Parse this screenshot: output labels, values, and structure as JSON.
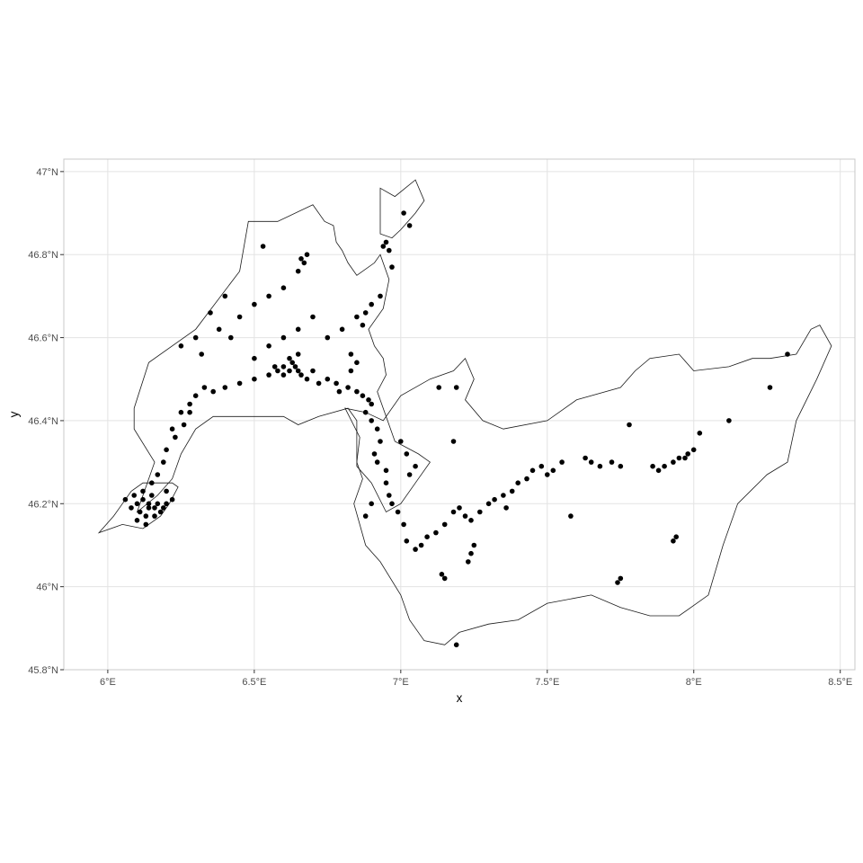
{
  "chart_data": {
    "type": "scatter",
    "xlabel": "x",
    "ylabel": "y",
    "xlim": [
      5.85,
      8.55
    ],
    "ylim": [
      45.8,
      47.03
    ],
    "x_ticks": [
      {
        "value": 6.0,
        "label": "6°E"
      },
      {
        "value": 6.5,
        "label": "6.5°E"
      },
      {
        "value": 7.0,
        "label": "7°E"
      },
      {
        "value": 7.5,
        "label": "7.5°E"
      },
      {
        "value": 8.0,
        "label": "8°E"
      },
      {
        "value": 8.5,
        "label": "8.5°E"
      }
    ],
    "y_ticks": [
      {
        "value": 45.8,
        "label": "45.8°N"
      },
      {
        "value": 46.0,
        "label": "46°N"
      },
      {
        "value": 46.2,
        "label": "46.2°N"
      },
      {
        "value": 46.4,
        "label": "46.4°N"
      },
      {
        "value": 46.6,
        "label": "46.6°N"
      },
      {
        "value": 46.8,
        "label": "46.8°N"
      },
      {
        "value": 47.0,
        "label": "47°N"
      }
    ],
    "grid": true,
    "legend": "none",
    "colors": {
      "panel_border": "#c8c8c8",
      "grid": "#e3e3e3",
      "outline": "#1a1a1a",
      "points": "#000000"
    },
    "outline_geneva": [
      [
        5.97,
        46.13
      ],
      [
        6.05,
        46.15
      ],
      [
        6.12,
        46.14
      ],
      [
        6.18,
        46.17
      ],
      [
        6.21,
        46.2
      ],
      [
        6.24,
        46.24
      ],
      [
        6.22,
        46.25
      ],
      [
        6.17,
        46.25
      ],
      [
        6.12,
        46.25
      ],
      [
        6.08,
        46.23
      ],
      [
        6.05,
        46.2
      ],
      [
        6.02,
        46.17
      ],
      [
        5.97,
        46.13
      ]
    ],
    "outline_vaud": [
      [
        6.1,
        46.18
      ],
      [
        6.16,
        46.3
      ],
      [
        6.09,
        46.38
      ],
      [
        6.09,
        46.43
      ],
      [
        6.14,
        46.54
      ],
      [
        6.3,
        46.62
      ],
      [
        6.45,
        46.76
      ],
      [
        6.48,
        46.88
      ],
      [
        6.58,
        46.88
      ],
      [
        6.7,
        46.92
      ],
      [
        6.74,
        46.88
      ],
      [
        6.77,
        46.87
      ],
      [
        6.78,
        46.83
      ],
      [
        6.8,
        46.81
      ],
      [
        6.82,
        46.78
      ],
      [
        6.85,
        46.75
      ],
      [
        6.91,
        46.78
      ],
      [
        6.93,
        46.8
      ],
      [
        6.96,
        46.74
      ],
      [
        6.94,
        46.67
      ],
      [
        6.89,
        46.62
      ],
      [
        6.91,
        46.58
      ],
      [
        6.94,
        46.55
      ],
      [
        6.95,
        46.51
      ],
      [
        6.92,
        46.47
      ],
      [
        6.95,
        46.41
      ],
      [
        6.98,
        46.35
      ],
      [
        7.06,
        46.32
      ],
      [
        7.1,
        46.3
      ],
      [
        7.05,
        46.25
      ],
      [
        7.0,
        46.2
      ],
      [
        6.95,
        46.18
      ],
      [
        6.9,
        46.25
      ],
      [
        6.85,
        46.29
      ],
      [
        6.85,
        46.4
      ],
      [
        6.82,
        46.43
      ],
      [
        6.72,
        46.41
      ],
      [
        6.65,
        46.39
      ],
      [
        6.6,
        46.41
      ],
      [
        6.48,
        46.41
      ],
      [
        6.36,
        46.41
      ],
      [
        6.3,
        46.38
      ],
      [
        6.25,
        46.32
      ],
      [
        6.22,
        46.26
      ],
      [
        6.17,
        46.22
      ],
      [
        6.1,
        46.18
      ]
    ],
    "outline_fribourg_north": [
      [
        6.93,
        46.96
      ],
      [
        6.98,
        46.94
      ],
      [
        7.05,
        46.98
      ],
      [
        7.08,
        46.93
      ],
      [
        7.05,
        46.9
      ],
      [
        7.0,
        46.86
      ],
      [
        6.97,
        46.84
      ],
      [
        6.93,
        46.85
      ],
      [
        6.93,
        46.9
      ],
      [
        6.93,
        46.96
      ]
    ],
    "outline_valais": [
      [
        6.81,
        46.43
      ],
      [
        6.86,
        46.36
      ],
      [
        6.85,
        46.3
      ],
      [
        6.87,
        46.26
      ],
      [
        6.84,
        46.2
      ],
      [
        6.86,
        46.15
      ],
      [
        6.88,
        46.1
      ],
      [
        6.93,
        46.06
      ],
      [
        7.0,
        45.98
      ],
      [
        7.03,
        45.92
      ],
      [
        7.08,
        45.87
      ],
      [
        7.15,
        45.86
      ],
      [
        7.2,
        45.89
      ],
      [
        7.3,
        45.91
      ],
      [
        7.4,
        45.92
      ],
      [
        7.5,
        45.96
      ],
      [
        7.65,
        45.98
      ],
      [
        7.75,
        45.95
      ],
      [
        7.85,
        45.93
      ],
      [
        7.95,
        45.93
      ],
      [
        8.05,
        45.98
      ],
      [
        8.1,
        46.1
      ],
      [
        8.15,
        46.2
      ],
      [
        8.25,
        46.27
      ],
      [
        8.32,
        46.3
      ],
      [
        8.35,
        46.4
      ],
      [
        8.42,
        46.5
      ],
      [
        8.47,
        46.58
      ],
      [
        8.43,
        46.63
      ],
      [
        8.4,
        46.62
      ],
      [
        8.35,
        46.56
      ],
      [
        8.26,
        46.55
      ],
      [
        8.2,
        46.55
      ],
      [
        8.12,
        46.53
      ],
      [
        8.0,
        46.52
      ],
      [
        7.95,
        46.56
      ],
      [
        7.85,
        46.55
      ],
      [
        7.8,
        46.52
      ],
      [
        7.75,
        46.48
      ],
      [
        7.6,
        46.45
      ],
      [
        7.5,
        46.4
      ],
      [
        7.35,
        46.38
      ],
      [
        7.28,
        46.4
      ],
      [
        7.22,
        46.45
      ],
      [
        7.25,
        46.5
      ],
      [
        7.22,
        46.55
      ],
      [
        7.18,
        46.52
      ],
      [
        7.1,
        46.5
      ],
      [
        7.0,
        46.46
      ],
      [
        6.94,
        46.4
      ],
      [
        6.88,
        46.42
      ],
      [
        6.81,
        46.43
      ]
    ],
    "points": [
      [
        6.1,
        46.2
      ],
      [
        6.12,
        46.21
      ],
      [
        6.14,
        46.2
      ],
      [
        6.16,
        46.19
      ],
      [
        6.11,
        46.18
      ],
      [
        6.13,
        46.17
      ],
      [
        6.15,
        46.22
      ],
      [
        6.17,
        46.2
      ],
      [
        6.19,
        46.19
      ],
      [
        6.09,
        46.22
      ],
      [
        6.12,
        46.23
      ],
      [
        6.14,
        46.19
      ],
      [
        6.16,
        46.17
      ],
      [
        6.18,
        46.18
      ],
      [
        6.2,
        46.2
      ],
      [
        6.08,
        46.19
      ],
      [
        6.1,
        46.16
      ],
      [
        6.13,
        46.15
      ],
      [
        6.06,
        46.21
      ],
      [
        6.2,
        46.23
      ],
      [
        6.22,
        46.21
      ],
      [
        6.15,
        46.25
      ],
      [
        6.17,
        46.27
      ],
      [
        6.19,
        46.3
      ],
      [
        6.2,
        46.33
      ],
      [
        6.22,
        46.38
      ],
      [
        6.25,
        46.42
      ],
      [
        6.28,
        46.44
      ],
      [
        6.3,
        46.46
      ],
      [
        6.33,
        46.48
      ],
      [
        6.36,
        46.47
      ],
      [
        6.4,
        46.48
      ],
      [
        6.45,
        46.49
      ],
      [
        6.5,
        46.5
      ],
      [
        6.55,
        46.51
      ],
      [
        6.58,
        46.52
      ],
      [
        6.6,
        46.53
      ],
      [
        6.62,
        46.52
      ],
      [
        6.63,
        46.54
      ],
      [
        6.64,
        46.53
      ],
      [
        6.65,
        46.52
      ],
      [
        6.66,
        46.51
      ],
      [
        6.68,
        46.5
      ],
      [
        6.6,
        46.51
      ],
      [
        6.57,
        46.53
      ],
      [
        6.62,
        46.55
      ],
      [
        6.65,
        46.56
      ],
      [
        6.7,
        46.52
      ],
      [
        6.72,
        46.49
      ],
      [
        6.75,
        46.5
      ],
      [
        6.78,
        46.49
      ],
      [
        6.5,
        46.55
      ],
      [
        6.55,
        46.58
      ],
      [
        6.6,
        46.6
      ],
      [
        6.65,
        46.62
      ],
      [
        6.7,
        46.65
      ],
      [
        6.75,
        46.6
      ],
      [
        6.8,
        46.62
      ],
      [
        6.85,
        46.65
      ],
      [
        6.42,
        46.6
      ],
      [
        6.38,
        46.62
      ],
      [
        6.45,
        46.65
      ],
      [
        6.5,
        46.68
      ],
      [
        6.55,
        46.7
      ],
      [
        6.6,
        46.72
      ],
      [
        6.65,
        46.76
      ],
      [
        6.67,
        46.78
      ],
      [
        6.68,
        46.8
      ],
      [
        6.66,
        46.79
      ],
      [
        6.53,
        46.82
      ],
      [
        6.3,
        46.6
      ],
      [
        6.32,
        46.56
      ],
      [
        6.25,
        46.58
      ],
      [
        6.35,
        46.66
      ],
      [
        6.4,
        46.7
      ],
      [
        6.28,
        46.42
      ],
      [
        6.26,
        46.39
      ],
      [
        6.23,
        46.36
      ],
      [
        6.85,
        46.47
      ],
      [
        6.87,
        46.46
      ],
      [
        6.89,
        46.45
      ],
      [
        6.9,
        46.44
      ],
      [
        6.88,
        46.42
      ],
      [
        6.9,
        46.4
      ],
      [
        6.92,
        46.38
      ],
      [
        6.93,
        46.35
      ],
      [
        6.91,
        46.32
      ],
      [
        6.92,
        46.3
      ],
      [
        6.95,
        46.28
      ],
      [
        6.95,
        46.25
      ],
      [
        6.96,
        46.22
      ],
      [
        6.97,
        46.2
      ],
      [
        6.99,
        46.18
      ],
      [
        7.0,
        46.35
      ],
      [
        7.02,
        46.32
      ],
      [
        7.05,
        46.29
      ],
      [
        7.03,
        46.27
      ],
      [
        6.9,
        46.2
      ],
      [
        6.88,
        46.17
      ],
      [
        7.01,
        46.15
      ],
      [
        7.02,
        46.11
      ],
      [
        7.05,
        46.09
      ],
      [
        7.07,
        46.1
      ],
      [
        7.09,
        46.12
      ],
      [
        7.12,
        46.13
      ],
      [
        7.15,
        46.15
      ],
      [
        7.18,
        46.18
      ],
      [
        7.2,
        46.19
      ],
      [
        7.22,
        46.17
      ],
      [
        7.24,
        46.16
      ],
      [
        7.27,
        46.18
      ],
      [
        7.3,
        46.2
      ],
      [
        7.32,
        46.21
      ],
      [
        7.35,
        46.22
      ],
      [
        7.38,
        46.23
      ],
      [
        7.4,
        46.25
      ],
      [
        7.43,
        46.26
      ],
      [
        7.45,
        46.28
      ],
      [
        7.48,
        46.29
      ],
      [
        7.5,
        46.27
      ],
      [
        7.52,
        46.28
      ],
      [
        7.55,
        46.3
      ],
      [
        7.25,
        46.1
      ],
      [
        7.24,
        46.08
      ],
      [
        7.23,
        46.06
      ],
      [
        7.14,
        46.03
      ],
      [
        7.15,
        46.02
      ],
      [
        7.63,
        46.31
      ],
      [
        7.65,
        46.3
      ],
      [
        7.68,
        46.29
      ],
      [
        7.72,
        46.3
      ],
      [
        7.75,
        46.29
      ],
      [
        7.78,
        46.39
      ],
      [
        7.86,
        46.29
      ],
      [
        7.88,
        46.28
      ],
      [
        7.9,
        46.29
      ],
      [
        7.93,
        46.3
      ],
      [
        7.95,
        46.31
      ],
      [
        7.97,
        46.31
      ],
      [
        7.98,
        46.32
      ],
      [
        8.0,
        46.33
      ],
      [
        8.02,
        46.37
      ],
      [
        8.12,
        46.4
      ],
      [
        7.93,
        46.11
      ],
      [
        7.94,
        46.12
      ],
      [
        7.75,
        46.02
      ],
      [
        7.74,
        46.01
      ],
      [
        8.26,
        46.48
      ],
      [
        8.32,
        46.56
      ],
      [
        7.58,
        46.17
      ],
      [
        7.36,
        46.19
      ],
      [
        7.19,
        45.86
      ],
      [
        7.13,
        46.48
      ],
      [
        7.19,
        46.48
      ],
      [
        7.18,
        46.35
      ],
      [
        6.97,
        46.77
      ],
      [
        6.96,
        46.81
      ],
      [
        6.95,
        46.83
      ],
      [
        6.94,
        46.82
      ],
      [
        7.03,
        46.87
      ],
      [
        7.01,
        46.9
      ],
      [
        6.93,
        46.7
      ],
      [
        6.9,
        46.68
      ],
      [
        6.88,
        46.66
      ],
      [
        6.87,
        46.63
      ],
      [
        6.83,
        46.56
      ],
      [
        6.85,
        46.54
      ],
      [
        6.83,
        46.52
      ],
      [
        6.82,
        46.48
      ],
      [
        6.79,
        46.47
      ]
    ]
  }
}
